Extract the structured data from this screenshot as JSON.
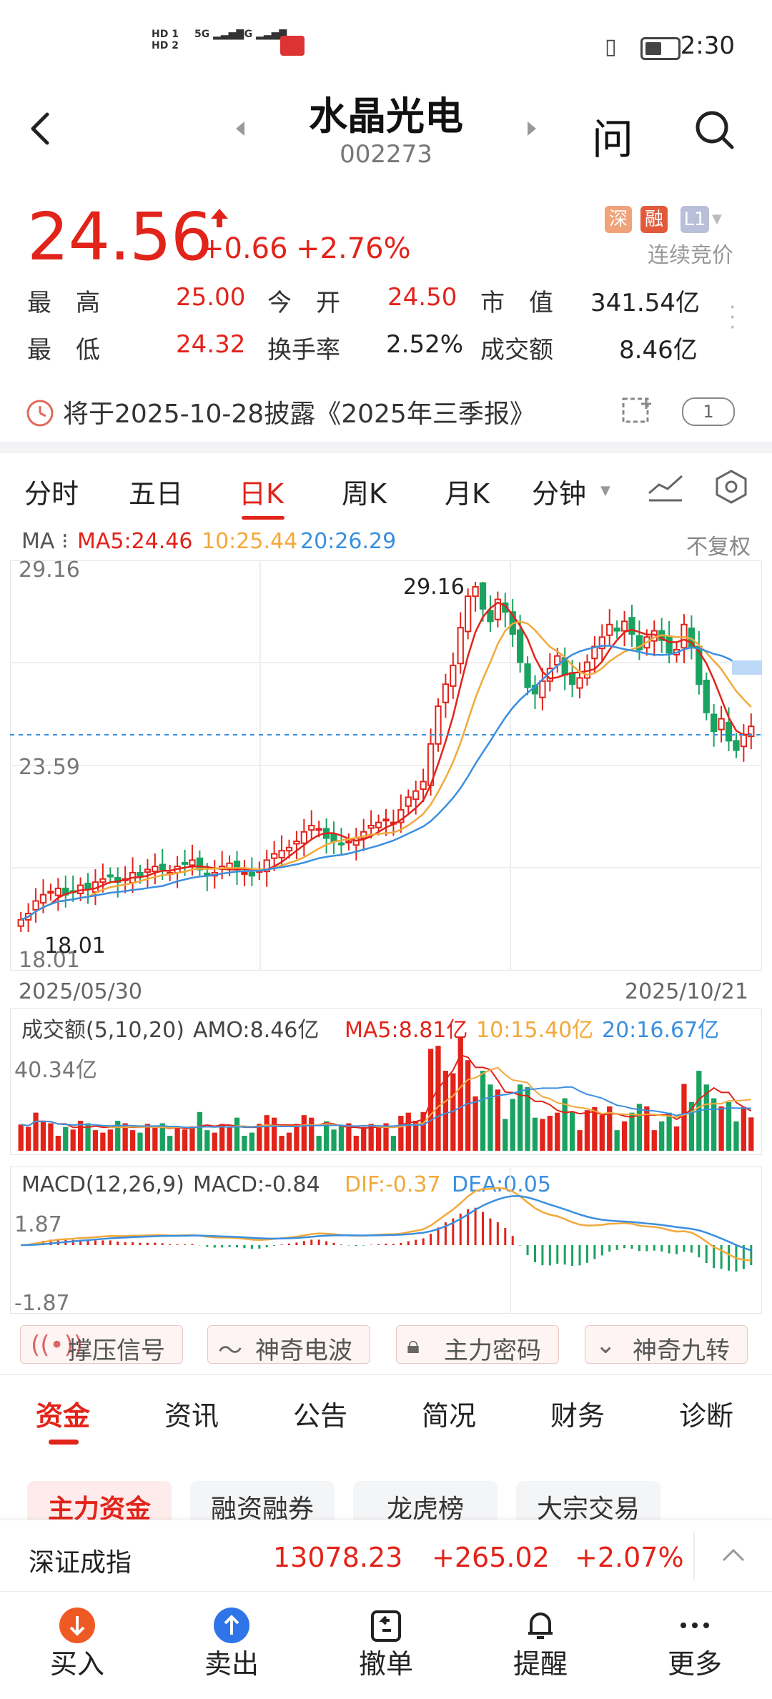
{
  "status_bar": {
    "time": "2:30",
    "net1": "5G",
    "net2": "4G"
  },
  "header": {
    "title": "水晶光电",
    "code": "002273",
    "ask_label": "问"
  },
  "quote": {
    "price": "24.56",
    "change": "+0.66",
    "change_pct": "+2.76%",
    "tags": [
      "深",
      "融",
      "L1"
    ],
    "continuous_bid": "连续竞价",
    "high_label": "最　高",
    "high": "25.00",
    "open_label": "今　开",
    "open": "24.50",
    "mktcap_label": "市　值",
    "mktcap": "341.54亿",
    "low_label": "最　低",
    "low": "24.32",
    "turnover_label": "换手率",
    "turnover": "2.52%",
    "amount_label": "成交额",
    "amount": "8.46亿"
  },
  "disclosure": {
    "text": "将于2025-10-28披露《2025年三季报》",
    "badge": "1"
  },
  "chart_tabs": [
    "分时",
    "五日",
    "日K",
    "周K",
    "月K",
    "分钟"
  ],
  "ma_bar": {
    "label": "MA",
    "ma5": "MA5:24.46",
    "ma10": "10:25.44",
    "ma20": "20:26.29",
    "adjust": "不复权"
  },
  "kchart": {
    "top_price": "29.16",
    "mid_price": "23.59",
    "bottom_price": "18.01",
    "max_label": "29.16",
    "min_label": "18.01",
    "start_date": "2025/05/30",
    "end_date": "2025/10/21"
  },
  "volume": {
    "title": "成交额(5,10,20)",
    "amo": "AMO:8.46亿",
    "ma5": "MA5:8.81亿",
    "ma10": "10:15.40亿",
    "ma20": "20:16.67亿",
    "top": "40.34亿"
  },
  "macd": {
    "title": "MACD(12,26,9)",
    "macd": "MACD:-0.84",
    "dif": "DIF:-0.37",
    "dea": "DEA:0.05",
    "top": "1.87",
    "bottom": "-1.87"
  },
  "signals": [
    "撑压信号",
    "神奇电波",
    "主力密码",
    "神奇九转"
  ],
  "info_tabs": [
    "资金",
    "资讯",
    "公告",
    "简况",
    "财务",
    "诊断"
  ],
  "sub_tabs": [
    "主力资金",
    "融资融券",
    "龙虎榜",
    "大宗交易"
  ],
  "index_bar": {
    "name": "深证成指",
    "value": "13078.23",
    "change": "+265.02",
    "pct": "+2.07%"
  },
  "bottom_nav": [
    "买入",
    "卖出",
    "撤单",
    "提醒",
    "更多"
  ],
  "colors": {
    "up": "#e2231a",
    "down": "#1aa260",
    "ma5": "#e2231a",
    "ma10": "#f2a93b",
    "ma20": "#3a8fe0"
  },
  "chart_data": {
    "type": "candlestick",
    "title": "",
    "xlabel": "",
    "ylabel": "",
    "x_range": [
      "2025/05/30",
      "2025/10/21"
    ],
    "ylim": [
      18.01,
      29.16
    ],
    "high": 29.16,
    "low": 18.01,
    "closes": [
      18.4,
      18.6,
      19.0,
      19.2,
      19.3,
      19.4,
      19.2,
      19.3,
      19.5,
      19.4,
      19.6,
      19.7,
      19.8,
      19.6,
      19.7,
      19.9,
      19.8,
      20.0,
      20.1,
      20.0,
      19.9,
      20.1,
      20.2,
      20.3,
      20.0,
      19.8,
      19.9,
      20.1,
      20.2,
      20.0,
      19.9,
      19.8,
      20.0,
      20.3,
      20.5,
      20.6,
      20.7,
      20.9,
      21.2,
      21.4,
      21.3,
      21.0,
      20.9,
      20.8,
      20.9,
      21.0,
      21.2,
      21.4,
      21.5,
      21.6,
      21.5,
      21.9,
      22.3,
      22.5,
      22.8,
      24.0,
      25.2,
      25.9,
      26.5,
      27.7,
      28.7,
      29.0,
      28.3,
      27.9,
      28.6,
      28.2,
      27.5,
      26.6,
      25.8,
      25.6,
      26.0,
      26.4,
      26.8,
      26.2,
      25.9,
      26.1,
      26.6,
      27.1,
      27.4,
      27.8,
      27.6,
      27.9,
      27.5,
      27.0,
      27.4,
      27.6,
      27.3,
      26.9,
      27.0,
      27.8,
      27.1,
      25.9,
      25.0,
      24.4,
      24.8,
      24.1,
      23.8,
      24.3,
      24.56
    ]
  }
}
